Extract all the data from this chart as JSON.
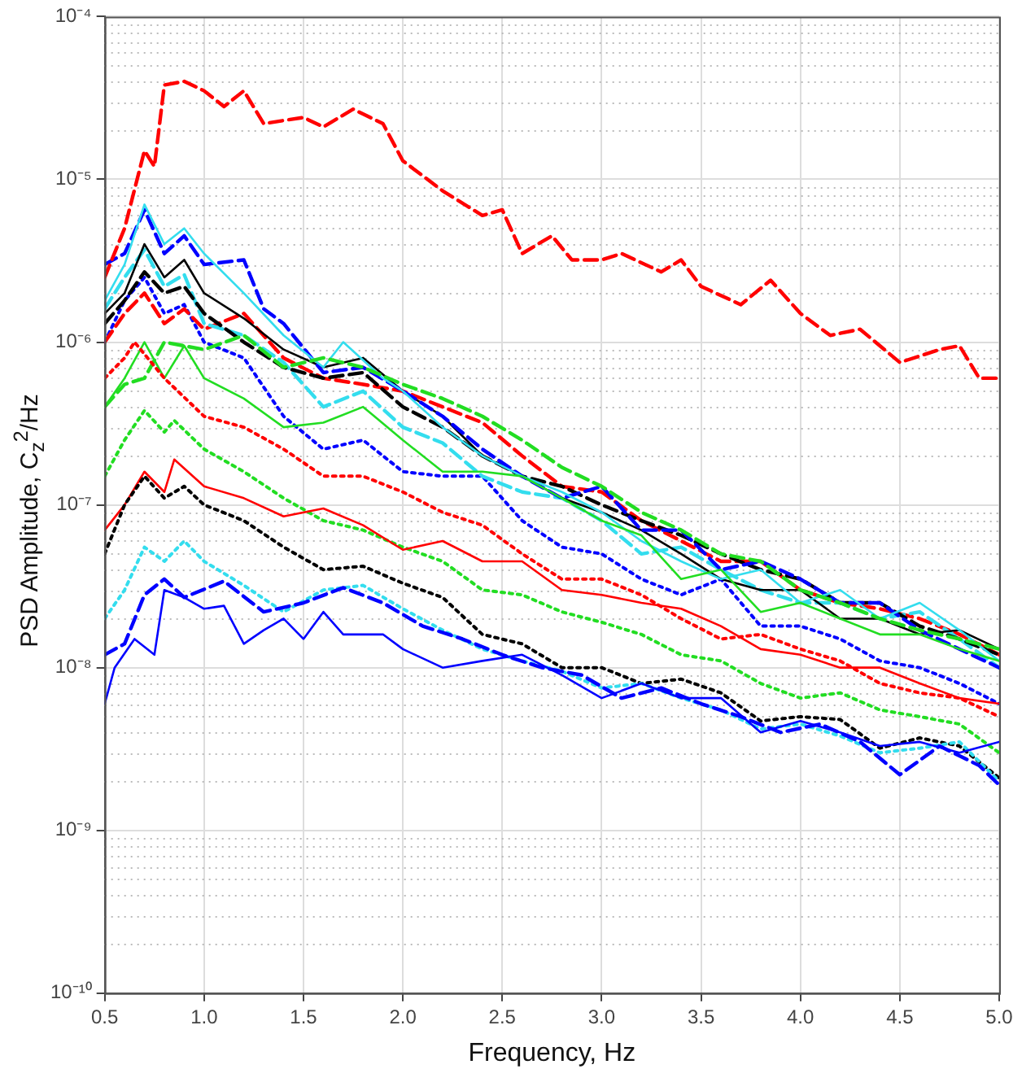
{
  "chart_data": {
    "type": "line",
    "xlabel": "Frequency, Hz",
    "ylabel": "PSD Amplitude, C$_{z}$$^{2}$/Hz",
    "log": "y",
    "grid": true,
    "xlim": [
      0.5,
      5.0
    ],
    "xticks": [
      0.5,
      {
        "value": 1,
        "label": "1.0"
      },
      1.5,
      {
        "value": 2,
        "label": "2.0"
      },
      2.5,
      {
        "value": 3,
        "label": "3.0"
      },
      3.5,
      {
        "value": 4,
        "label": "4.0"
      },
      4.5,
      {
        "value": 5,
        "label": "5.0"
      }
    ],
    "ylim": [
      1e-10,
      0.0001
    ],
    "yticks": [
      {
        "value": 1e-10,
        "label": "10⁻¹⁰"
      },
      {
        "value": 1e-09,
        "label": "10⁻⁹"
      },
      {
        "value": 1e-08,
        "label": "10⁻⁸"
      },
      {
        "value": 1e-07,
        "label": "10⁻⁷"
      },
      {
        "value": 1e-06,
        "label": "10⁻⁶"
      },
      {
        "value": 1e-05,
        "label": "10⁻⁵"
      },
      {
        "value": 0.0001,
        "label": "10⁻⁴"
      }
    ],
    "series": [
      {
        "color": "#ff0000",
        "line_style": "dashed",
        "x": [
          0.5,
          0.6,
          0.7,
          0.75,
          0.8,
          0.9,
          1.0,
          1.1,
          1.2,
          1.3,
          1.4,
          1.5,
          1.6,
          1.75,
          1.9,
          2.0,
          2.2,
          2.4,
          2.5,
          2.6,
          2.75,
          2.85,
          3.0,
          3.1,
          3.3,
          3.4,
          3.5,
          3.7,
          3.85,
          4.0,
          4.15,
          4.3,
          4.5,
          4.7,
          4.8,
          4.9,
          5.0
        ],
        "values": [
          2.5e-06,
          5e-06,
          1.5e-05,
          1.2e-05,
          3.8e-05,
          4e-05,
          3.5e-05,
          2.8e-05,
          3.5e-05,
          2.2e-05,
          2.3e-05,
          2.4e-05,
          2.1e-05,
          2.7e-05,
          2.2e-05,
          1.3e-05,
          8.5e-06,
          6e-06,
          6.5e-06,
          3.5e-06,
          4.5e-06,
          3.2e-06,
          3.2e-06,
          3.5e-06,
          2.7e-06,
          3.2e-06,
          2.2e-06,
          1.7e-06,
          2.4e-06,
          1.5e-06,
          1.1e-06,
          1.2e-06,
          7.5e-07,
          9e-07,
          9.5e-07,
          6e-07,
          6e-07
        ]
      },
      {
        "color": "#0000ff",
        "line_style": "solid",
        "x": [
          0.5,
          0.55,
          0.65,
          0.75,
          0.8,
          0.9,
          1.0,
          1.1,
          1.2,
          1.3,
          1.4,
          1.5,
          1.6,
          1.7,
          1.9,
          2.0,
          2.2,
          2.4,
          2.6,
          2.8,
          3.0,
          3.2,
          3.4,
          3.6,
          3.8,
          4.0,
          4.2,
          4.4,
          4.6,
          4.8,
          5.0
        ],
        "values": [
          6e-09,
          1e-08,
          1.5e-08,
          1.2e-08,
          3e-08,
          2.7e-08,
          2.3e-08,
          2.4e-08,
          1.4e-08,
          1.7e-08,
          2e-08,
          1.5e-08,
          2.2e-08,
          1.6e-08,
          1.6e-08,
          1.3e-08,
          1e-08,
          1.1e-08,
          1.2e-08,
          9e-09,
          6.5e-09,
          8e-09,
          6.5e-09,
          6.5e-09,
          4e-09,
          4.7e-09,
          4e-09,
          3.3e-09,
          3.5e-09,
          3e-09,
          3.5e-09
        ]
      },
      {
        "color": "#0000ff",
        "line_style": "dashed",
        "x": [
          0.5,
          0.6,
          0.7,
          0.8,
          0.9,
          1.1,
          1.3,
          1.5,
          1.7,
          1.9,
          2.1,
          2.3,
          2.5,
          2.7,
          2.9,
          3.1,
          3.3,
          3.5,
          3.7,
          3.9,
          4.1,
          4.3,
          4.5,
          4.7,
          4.9,
          5.0
        ],
        "values": [
          1.2e-08,
          1.4e-08,
          2.8e-08,
          3.5e-08,
          2.7e-08,
          3.4e-08,
          2.2e-08,
          2.5e-08,
          3.1e-08,
          2.5e-08,
          1.8e-08,
          1.5e-08,
          1.2e-08,
          1e-08,
          9e-09,
          6.5e-09,
          7.5e-09,
          6e-09,
          5e-09,
          4e-09,
          4.5e-09,
          3.5e-09,
          2.2e-09,
          3.3e-09,
          2.5e-09,
          1.9e-09
        ]
      },
      {
        "color": "#33ddee",
        "line_style": "dotted",
        "x": [
          0.5,
          0.6,
          0.7,
          0.8,
          0.9,
          1.0,
          1.2,
          1.4,
          1.6,
          1.8,
          2.0,
          2.2,
          2.4,
          2.6,
          2.8,
          3.0,
          3.2,
          3.4,
          3.6,
          3.8,
          4.0,
          4.2,
          4.4,
          4.6,
          4.8,
          5.0
        ],
        "values": [
          2e-08,
          3e-08,
          5.5e-08,
          4.5e-08,
          6e-08,
          4.5e-08,
          3.2e-08,
          2.2e-08,
          3e-08,
          3.2e-08,
          2.3e-08,
          1.7e-08,
          1.3e-08,
          1.1e-08,
          9.5e-09,
          7.5e-09,
          8e-09,
          6.5e-09,
          5.5e-09,
          4.2e-09,
          4.5e-09,
          3.8e-09,
          3e-09,
          3.2e-09,
          3.5e-09,
          2e-09
        ]
      },
      {
        "color": "#000000",
        "line_style": "dotted",
        "x": [
          0.5,
          0.6,
          0.7,
          0.8,
          0.9,
          1.0,
          1.2,
          1.4,
          1.6,
          1.8,
          2.0,
          2.2,
          2.4,
          2.6,
          2.8,
          3.0,
          3.2,
          3.4,
          3.6,
          3.8,
          4.0,
          4.2,
          4.4,
          4.6,
          4.8,
          5.0
        ],
        "values": [
          5e-08,
          1e-07,
          1.5e-07,
          1.1e-07,
          1.3e-07,
          1e-07,
          8e-08,
          5.5e-08,
          4e-08,
          4.2e-08,
          3.3e-08,
          2.7e-08,
          1.6e-08,
          1.4e-08,
          1e-08,
          1e-08,
          8e-09,
          8.5e-09,
          7e-09,
          4.7e-09,
          5e-09,
          4.8e-09,
          3.2e-09,
          3.7e-09,
          3.3e-09,
          2.1e-09
        ]
      },
      {
        "color": "#ff0000",
        "line_style": "solid",
        "x": [
          0.5,
          0.6,
          0.7,
          0.8,
          0.85,
          1.0,
          1.2,
          1.4,
          1.6,
          1.8,
          2.0,
          2.2,
          2.4,
          2.6,
          2.8,
          3.0,
          3.2,
          3.4,
          3.6,
          3.8,
          4.0,
          4.2,
          4.4,
          4.6,
          4.8,
          5.0
        ],
        "values": [
          7e-08,
          1e-07,
          1.6e-07,
          1.2e-07,
          1.9e-07,
          1.3e-07,
          1.1e-07,
          8.5e-08,
          9.5e-08,
          7.5e-08,
          5.3e-08,
          6e-08,
          4.5e-08,
          4.5e-08,
          3e-08,
          2.8e-08,
          2.5e-08,
          2.3e-08,
          1.8e-08,
          1.3e-08,
          1.2e-08,
          1e-08,
          1e-08,
          8e-09,
          6.5e-09,
          6e-09
        ]
      },
      {
        "color": "#22dd22",
        "line_style": "dotted",
        "x": [
          0.5,
          0.6,
          0.7,
          0.8,
          0.85,
          1.0,
          1.2,
          1.4,
          1.6,
          1.8,
          2.0,
          2.2,
          2.4,
          2.6,
          2.8,
          3.0,
          3.2,
          3.4,
          3.6,
          3.8,
          4.0,
          4.2,
          4.4,
          4.6,
          4.8,
          5.0
        ],
        "values": [
          1.5e-07,
          2.5e-07,
          3.8e-07,
          2.8e-07,
          3.3e-07,
          2.2e-07,
          1.6e-07,
          1.1e-07,
          8e-08,
          7e-08,
          5.5e-08,
          4.5e-08,
          3e-08,
          2.8e-08,
          2.2e-08,
          1.9e-08,
          1.6e-08,
          1.2e-08,
          1.1e-08,
          8e-09,
          6.5e-09,
          7e-09,
          5.5e-09,
          5e-09,
          4.5e-09,
          3e-09
        ]
      },
      {
        "color": "#ff0000",
        "line_style": "dotted",
        "x": [
          0.5,
          0.6,
          0.65,
          0.8,
          1.0,
          1.2,
          1.4,
          1.6,
          1.8,
          2.0,
          2.2,
          2.4,
          2.6,
          2.8,
          3.0,
          3.2,
          3.4,
          3.6,
          3.8,
          4.0,
          4.2,
          4.4,
          4.6,
          4.8,
          5.0
        ],
        "values": [
          6e-07,
          8e-07,
          1e-06,
          6e-07,
          3.5e-07,
          3e-07,
          2.2e-07,
          1.5e-07,
          1.5e-07,
          1.2e-07,
          9e-08,
          7.5e-08,
          5e-08,
          3.5e-08,
          3.5e-08,
          2.8e-08,
          2e-08,
          1.5e-08,
          1.6e-08,
          1.3e-08,
          1.1e-08,
          8e-09,
          7e-09,
          6.5e-09,
          5e-09
        ]
      },
      {
        "color": "#22dd22",
        "line_style": "dashed",
        "x": [
          0.5,
          0.6,
          0.7,
          0.8,
          1.0,
          1.2,
          1.4,
          1.6,
          1.8,
          2.0,
          2.2,
          2.4,
          2.6,
          2.8,
          3.0,
          3.2,
          3.4,
          3.6,
          3.8,
          4.0,
          4.2,
          4.4,
          4.6,
          4.8,
          5.0
        ],
        "values": [
          4e-07,
          5.5e-07,
          6e-07,
          1e-06,
          9e-07,
          1.1e-06,
          7e-07,
          8e-07,
          7e-07,
          5.5e-07,
          4.5e-07,
          3.5e-07,
          2.5e-07,
          1.7e-07,
          1.3e-07,
          9e-08,
          7e-08,
          5e-08,
          4.5e-08,
          3e-08,
          2.5e-08,
          2e-08,
          1.7e-08,
          1.5e-08,
          1.3e-08
        ]
      },
      {
        "color": "#22dd22",
        "line_style": "solid",
        "x": [
          0.5,
          0.6,
          0.7,
          0.8,
          0.9,
          1.0,
          1.2,
          1.4,
          1.6,
          1.8,
          2.0,
          2.2,
          2.4,
          2.6,
          2.8,
          3.0,
          3.2,
          3.4,
          3.6,
          3.8,
          4.0,
          4.2,
          4.4,
          4.6,
          4.8,
          5.0
        ],
        "values": [
          4e-07,
          6e-07,
          1e-06,
          6e-07,
          9.5e-07,
          6e-07,
          4.5e-07,
          3e-07,
          3.2e-07,
          4e-07,
          2.5e-07,
          1.6e-07,
          1.6e-07,
          1.5e-07,
          1.1e-07,
          8e-08,
          6.5e-08,
          3.5e-08,
          4e-08,
          2.2e-08,
          2.5e-08,
          2e-08,
          1.6e-08,
          1.6e-08,
          1.3e-08,
          1.1e-08
        ]
      },
      {
        "color": "#33ddee",
        "line_style": "solid",
        "x": [
          0.5,
          0.6,
          0.7,
          0.8,
          0.9,
          1.0,
          1.2,
          1.4,
          1.6,
          1.7,
          1.9,
          2.0,
          2.2,
          2.4,
          2.6,
          2.8,
          3.0,
          3.2,
          3.4,
          3.6,
          3.8,
          4.0,
          4.2,
          4.4,
          4.6,
          4.8,
          5.0
        ],
        "values": [
          1.8e-06,
          3e-06,
          7e-06,
          4e-06,
          5e-06,
          3.5e-06,
          2e-06,
          1.1e-06,
          7e-07,
          1e-06,
          6e-07,
          5e-07,
          3e-07,
          2e-07,
          1.5e-07,
          1.2e-07,
          9e-08,
          6e-08,
          4.5e-08,
          3.5e-08,
          4e-08,
          2.5e-08,
          3e-08,
          2e-08,
          2.5e-08,
          1.7e-08,
          1.1e-08
        ]
      },
      {
        "color": "#0000ff",
        "line_style": "dashed",
        "x": [
          0.5,
          0.6,
          0.7,
          0.8,
          0.9,
          1.0,
          1.2,
          1.3,
          1.4,
          1.6,
          1.8,
          2.0,
          2.2,
          2.4,
          2.6,
          2.8,
          3.0,
          3.2,
          3.4,
          3.6,
          3.8,
          4.0,
          4.2,
          4.4,
          4.6,
          4.8,
          5.0
        ],
        "values": [
          3e-06,
          3.5e-06,
          6.5e-06,
          3.5e-06,
          4.5e-06,
          3e-06,
          3.2e-06,
          1.6e-06,
          1.3e-06,
          6.5e-07,
          7e-07,
          5e-07,
          3.5e-07,
          2.2e-07,
          1.5e-07,
          1.1e-07,
          1.3e-07,
          7e-08,
          7e-08,
          4e-08,
          4.5e-08,
          3.5e-08,
          2.5e-08,
          2.5e-08,
          1.7e-08,
          1.3e-08,
          1e-08
        ]
      },
      {
        "color": "#000000",
        "line_style": "solid",
        "x": [
          0.5,
          0.6,
          0.7,
          0.8,
          0.9,
          1.0,
          1.2,
          1.4,
          1.6,
          1.8,
          2.0,
          2.2,
          2.4,
          2.6,
          2.8,
          3.0,
          3.2,
          3.4,
          3.6,
          3.8,
          4.0,
          4.2,
          4.4,
          4.6,
          4.8,
          5.0
        ],
        "values": [
          1.5e-06,
          2e-06,
          4e-06,
          2.5e-06,
          3.2e-06,
          2e-06,
          1.4e-06,
          9e-07,
          7e-07,
          8e-07,
          5e-07,
          3.5e-07,
          2e-07,
          1.5e-07,
          1.1e-07,
          9e-08,
          7e-08,
          5e-08,
          3.5e-08,
          3e-08,
          3e-08,
          2e-08,
          2e-08,
          1.6e-08,
          1.7e-08,
          1.3e-08
        ]
      },
      {
        "color": "#000000",
        "line_style": "dashed",
        "x": [
          0.5,
          0.6,
          0.7,
          0.8,
          0.9,
          1.0,
          1.2,
          1.4,
          1.6,
          1.8,
          2.0,
          2.2,
          2.4,
          2.6,
          2.8,
          3.0,
          3.2,
          3.4,
          3.6,
          3.8,
          4.0,
          4.2,
          4.4,
          4.6,
          4.8,
          5.0
        ],
        "values": [
          1.3e-06,
          1.8e-06,
          2.7e-06,
          2e-06,
          2.2e-06,
          1.5e-06,
          1e-06,
          7e-07,
          6e-07,
          6.5e-07,
          4e-07,
          3e-07,
          2e-07,
          1.5e-07,
          1.3e-07,
          1e-07,
          8e-08,
          6.5e-08,
          5e-08,
          4e-08,
          3.5e-08,
          2.5e-08,
          2.5e-08,
          1.8e-08,
          1.5e-08,
          1.2e-08
        ]
      },
      {
        "color": "#33ddee",
        "line_style": "dashed",
        "x": [
          0.5,
          0.6,
          0.7,
          0.8,
          0.9,
          1.0,
          1.2,
          1.4,
          1.6,
          1.8,
          2.0,
          2.2,
          2.4,
          2.6,
          2.8,
          3.0,
          3.2,
          3.4,
          3.6,
          3.8,
          4.0,
          4.2,
          4.4,
          4.6,
          4.8,
          5.0
        ],
        "values": [
          1.6e-06,
          2.5e-06,
          3.7e-06,
          2.2e-06,
          2.6e-06,
          1.3e-06,
          1.1e-06,
          7.5e-07,
          4e-07,
          5e-07,
          3e-07,
          2.4e-07,
          1.5e-07,
          1.2e-07,
          1.1e-07,
          8e-08,
          5e-08,
          5.5e-08,
          4e-08,
          3e-08,
          2.5e-08,
          2.5e-08,
          2e-08,
          2.2e-08,
          1.5e-08,
          1e-08
        ]
      },
      {
        "color": "#ff0000",
        "line_style": "dashed",
        "x": [
          0.5,
          0.6,
          0.7,
          0.8,
          0.9,
          1.0,
          1.2,
          1.4,
          1.6,
          1.8,
          2.0,
          2.2,
          2.4,
          2.6,
          2.8,
          3.0,
          3.2,
          3.4,
          3.6,
          3.8,
          4.0,
          4.2,
          4.4,
          4.6,
          4.8,
          5.0
        ],
        "values": [
          1e-06,
          1.5e-06,
          2e-06,
          1.3e-06,
          1.6e-06,
          1.2e-06,
          1.5e-06,
          8e-07,
          6e-07,
          5.5e-07,
          5e-07,
          4e-07,
          3.2e-07,
          2e-07,
          1.3e-07,
          1.2e-07,
          8e-08,
          6e-08,
          4.5e-08,
          4.5e-08,
          3e-08,
          2.5e-08,
          2.3e-08,
          2e-08,
          1.6e-08,
          1.2e-08
        ]
      },
      {
        "color": "#0000ff",
        "line_style": "dotted",
        "x": [
          0.5,
          0.6,
          0.7,
          0.8,
          0.9,
          1.0,
          1.2,
          1.4,
          1.6,
          1.8,
          2.0,
          2.2,
          2.4,
          2.6,
          2.8,
          3.0,
          3.2,
          3.4,
          3.6,
          3.8,
          4.0,
          4.2,
          4.4,
          4.6,
          4.8,
          5.0
        ],
        "values": [
          1e-06,
          1.8e-06,
          2.5e-06,
          1.5e-06,
          1.7e-06,
          1e-06,
          8e-07,
          3.5e-07,
          2.2e-07,
          2.5e-07,
          1.6e-07,
          1.5e-07,
          1.5e-07,
          8e-08,
          5.5e-08,
          5e-08,
          3.5e-08,
          2.8e-08,
          3.5e-08,
          1.8e-08,
          1.8e-08,
          1.5e-08,
          1.1e-08,
          1e-08,
          8e-09,
          6e-09
        ]
      }
    ]
  }
}
